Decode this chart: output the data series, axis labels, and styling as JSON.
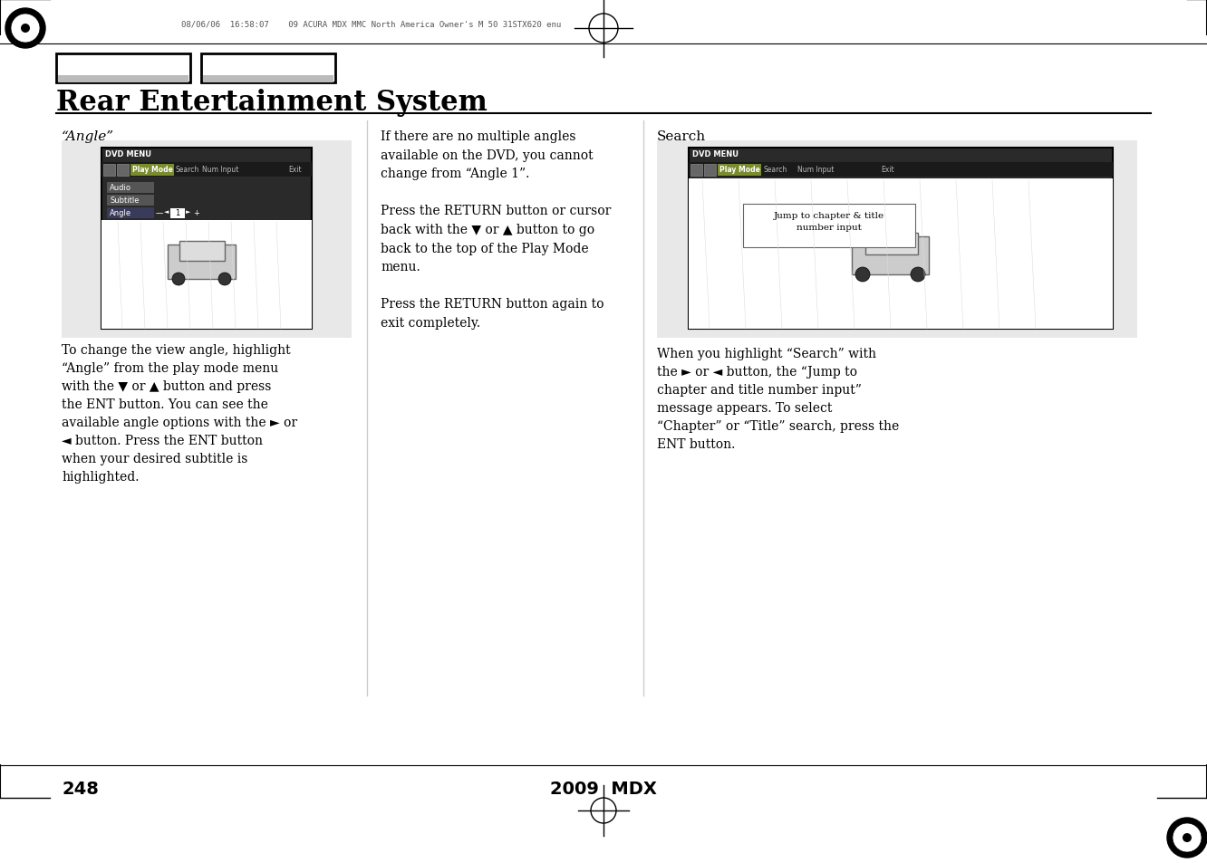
{
  "page_num": "248",
  "footer_center": "2009  MDX",
  "header_text": "08/06/06  16:58:07    09 ACURA MDX MMC North America Owner's M 50 31STX620 enu",
  "title": "Rear Entertainment System",
  "section_title_italic": "“Angle”",
  "section_title_right": "Search",
  "col1_body": "To change the view angle, highlight\n“Angle” from the play mode menu\nwith the ▼ or ▲ button and press\nthe ENT button. You can see the\navailable angle options with the ► or\n◄ button. Press the ENT button\nwhen your desired subtitle is\nhighlighted.",
  "col2_body": "If there are no multiple angles\navailable on the DVD, you cannot\nchange from “Angle 1”.\n\nPress the RETURN button or cursor\nback with the ▼ or ▲ button to go\nback to the top of the Play Mode\nmenu.\n\nPress the RETURN button again to\nexit completely.",
  "col3_body": "When you highlight “Search” with\nthe ► or ◄ button, the “Jump to\nchapter and title number input”\nmessage appears. To select\n“Chapter” or “Title” search, press the\nENT button.",
  "bg_color": "#ffffff",
  "text_color": "#000000",
  "screen_bg": "#e8e8e8",
  "dvd_menu_dark": "#333333",
  "highlight_green": "#7a8c2e",
  "menu_gray": "#999999",
  "dvd_menu_label": "DVD MENU"
}
